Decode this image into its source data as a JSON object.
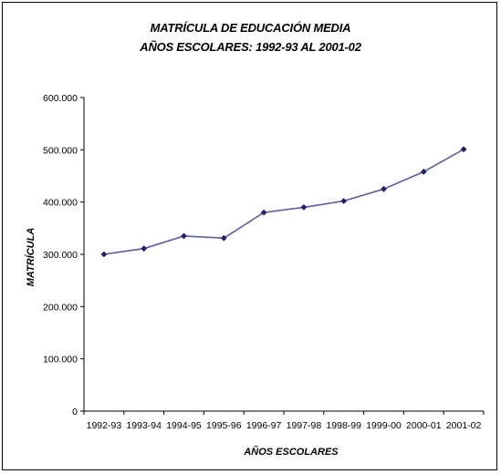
{
  "chart_data": {
    "type": "line",
    "title": "MATRÍCULA DE EDUCACIÓN MEDIA",
    "subtitle": "AÑOS ESCOLARES: 1992-93  AL  2001-02",
    "xlabel": "AÑOS ESCOLARES",
    "ylabel": "MATRÍCULA",
    "categories": [
      "1992-93",
      "1993-94",
      "1994-95",
      "1995-96",
      "1996-97",
      "1997-98",
      "1998-99",
      "1999-00",
      "2000-01",
      "2001-02"
    ],
    "series": [
      {
        "values": [
          300000,
          311000,
          335000,
          331000,
          380000,
          390000,
          402000,
          425000,
          458000,
          501000
        ]
      }
    ],
    "ylim": [
      0,
      600000
    ],
    "yticks": [
      0,
      100000,
      200000,
      300000,
      400000,
      500000,
      600000
    ],
    "ytick_labels": [
      "0",
      "100.000",
      "200.000",
      "300.000",
      "400.000",
      "500.000",
      "600.000"
    ],
    "grid": false,
    "line_color": "#5a5aa8",
    "marker_color": "#1f1f6e"
  }
}
